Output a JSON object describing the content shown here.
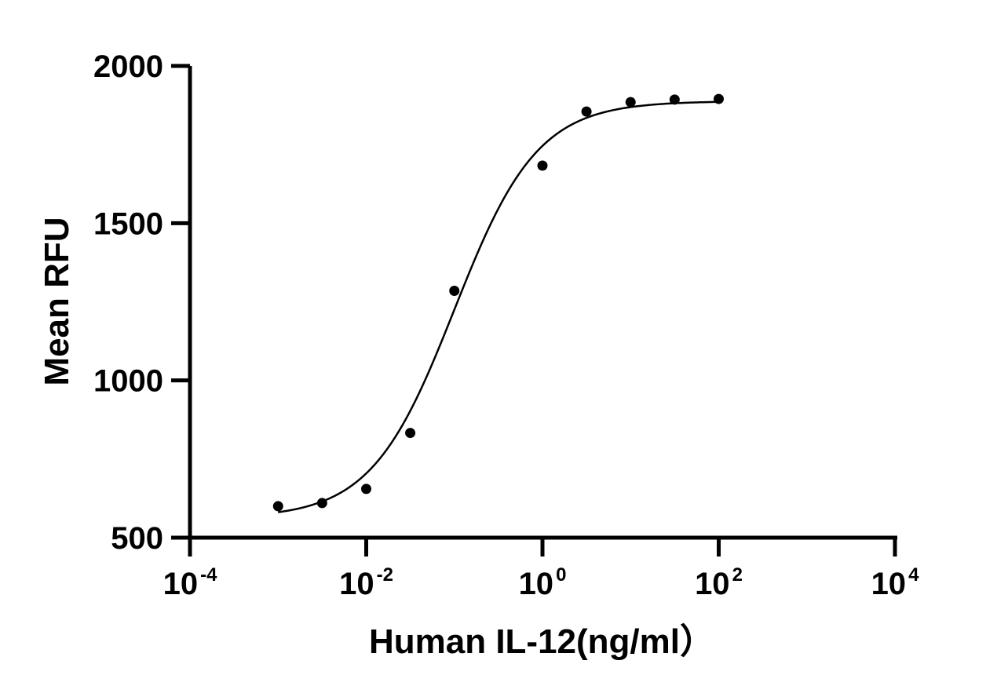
{
  "chart_data": {
    "type": "scatter",
    "xlabel": "Human IL-12(ng/ml）",
    "ylabel": "Mean RFU",
    "x_scale": "log10",
    "xlim": [
      0.0001,
      10000
    ],
    "ylim": [
      500,
      2000
    ],
    "x_ticks": [
      {
        "base": "10",
        "exp": "-4"
      },
      {
        "base": "10",
        "exp": "-2"
      },
      {
        "base": "10",
        "exp": "0"
      },
      {
        "base": "10",
        "exp": "2"
      },
      {
        "base": "10",
        "exp": "4"
      }
    ],
    "y_ticks": [
      "500",
      "1000",
      "1500",
      "2000"
    ],
    "grid": false,
    "legend": "none",
    "points": {
      "x": [
        0.001,
        0.00316,
        0.01,
        0.0316,
        0.1,
        1,
        3.16,
        10,
        31.6,
        100
      ],
      "y": [
        600,
        610,
        655,
        833,
        1285,
        1683,
        1855,
        1885,
        1893,
        1895
      ]
    },
    "fit_curve": {
      "model": "4PL",
      "bottom": 562,
      "top": 1888,
      "ec50": 0.1,
      "hill": 0.92,
      "x_range": [
        0.001,
        100
      ]
    },
    "colors": {
      "marker": "#000000",
      "line": "#000000",
      "axis": "#000000"
    }
  }
}
